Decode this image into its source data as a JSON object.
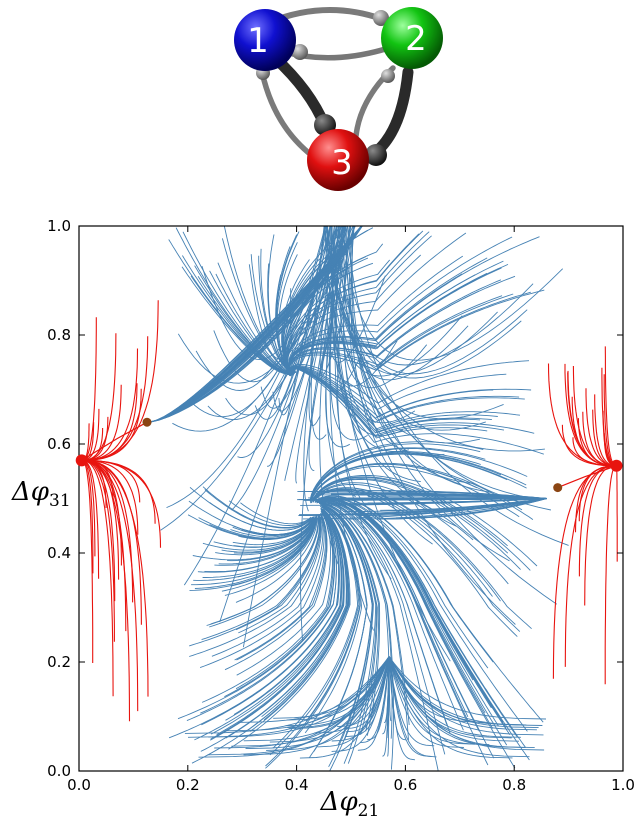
{
  "diagram": {
    "nodes": [
      {
        "id": "1",
        "label": "1",
        "color": "#1010d0"
      },
      {
        "id": "2",
        "label": "2",
        "color": "#10c010"
      },
      {
        "id": "3",
        "label": "3",
        "color": "#e01010"
      }
    ],
    "edge_color_strong": "#2a2a2a",
    "edge_color_weak": "#7a7a7a"
  },
  "chart_data": {
    "type": "streamplot",
    "xlabel": "Δφ21",
    "ylabel": "Δφ31",
    "xlim": [
      0.0,
      1.0
    ],
    "ylim": [
      0.0,
      1.0
    ],
    "xticks": [
      "0.0",
      "0.2",
      "0.4",
      "0.6",
      "0.8",
      "1.0"
    ],
    "yticks": [
      "0.0",
      "0.2",
      "0.4",
      "0.6",
      "0.8",
      "1.0"
    ],
    "xtick_values": [
      0.0,
      0.2,
      0.4,
      0.6,
      0.8,
      1.0
    ],
    "ytick_values": [
      0.0,
      0.2,
      0.4,
      0.6,
      0.8,
      1.0
    ],
    "colors": {
      "flow": "#4682b4",
      "basin": "#e8140f",
      "stable": "#e8140f",
      "saddle": "#8b4513"
    },
    "stable_points": [
      {
        "x": 0.005,
        "y": 0.57
      },
      {
        "x": 0.988,
        "y": 0.56
      }
    ],
    "saddle_points": [
      {
        "x": 0.125,
        "y": 0.64
      },
      {
        "x": 0.88,
        "y": 0.52
      }
    ],
    "attractor": {
      "x": 0.43,
      "y": 0.48
    },
    "grid": false
  }
}
